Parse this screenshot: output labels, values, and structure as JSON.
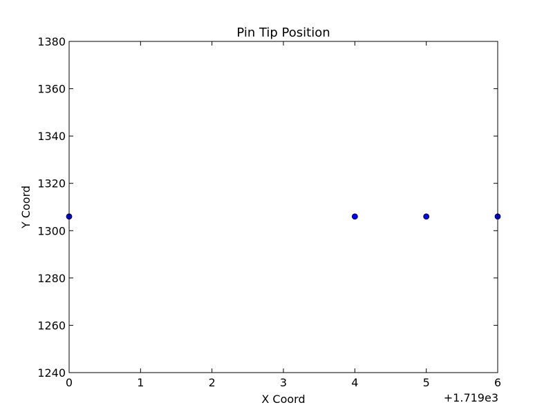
{
  "chart_data": {
    "type": "scatter",
    "title": "Pin Tip Position",
    "xlabel": "X Coord",
    "ylabel": "Y Coord",
    "x_offset_label": "+1.719e3",
    "xlim": [
      0,
      6
    ],
    "ylim": [
      1240,
      1380
    ],
    "xticks": [
      0,
      1,
      2,
      3,
      4,
      5,
      6
    ],
    "yticks": [
      1240,
      1260,
      1280,
      1300,
      1320,
      1340,
      1360,
      1380
    ],
    "grid": false,
    "legend": "none",
    "series": [
      {
        "color": "#0000ff",
        "points": [
          {
            "x": 0,
            "y": 1306
          },
          {
            "x": 4,
            "y": 1306
          },
          {
            "x": 5,
            "y": 1306
          },
          {
            "x": 6,
            "y": 1306
          }
        ]
      }
    ]
  }
}
